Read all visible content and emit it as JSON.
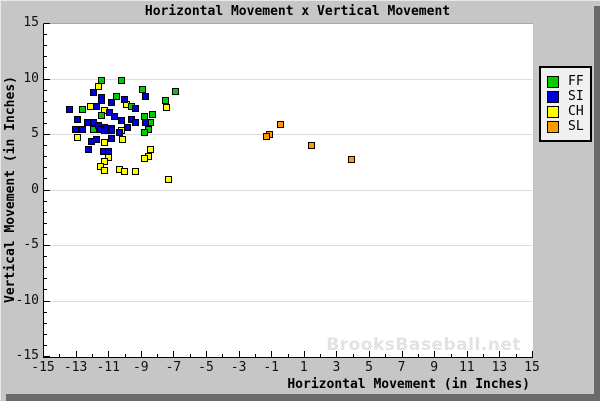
{
  "title": "Horizontal Movement x Vertical Movement",
  "watermark": "BrooksBaseball.net",
  "colors": {
    "panel_background": "#c6c6c6",
    "plot_background": "#ffffff",
    "gridline": "#dcdcdc",
    "panel_shadow": "#6a6a6a",
    "watermark_text": "#e2e2e2",
    "ff": "#00cc00",
    "si": "#0000dd",
    "ch": "#ffff00",
    "sl": "#ff9900"
  },
  "legend": {
    "position": "right",
    "items": [
      {
        "label": "FF",
        "color": "#00cc00"
      },
      {
        "label": "SI",
        "color": "#0000dd"
      },
      {
        "label": "CH",
        "color": "#ffff00"
      },
      {
        "label": "SL",
        "color": "#ff9900"
      }
    ]
  },
  "chart_data": {
    "type": "scatter",
    "title": "Horizontal Movement x Vertical Movement",
    "xlabel": "Horizontal Movement (in Inches)",
    "ylabel": "Vertical Movement (in Inches)",
    "xlim": [
      -15,
      15
    ],
    "ylim": [
      -15,
      15
    ],
    "x_tick_labels": [
      -15,
      -13,
      -11,
      -9,
      -7,
      -5,
      -3,
      -1,
      1,
      3,
      5,
      7,
      9,
      11,
      13,
      15
    ],
    "y_tick_labels": [
      15,
      10,
      5,
      0,
      -5,
      -10,
      -15
    ],
    "x_minor_tick_step": 1,
    "y_minor_tick_step": 1,
    "grid": "horizontal",
    "gridline_values": [
      10,
      5,
      0,
      -5,
      -10
    ],
    "legend_position": "right",
    "marker": "square",
    "series": [
      {
        "name": "FF",
        "color": "#00cc00",
        "points": [
          [
            -11.4,
            9.8
          ],
          [
            -10.2,
            9.8
          ],
          [
            -8.9,
            9.0
          ],
          [
            -6.9,
            8.8
          ],
          [
            -10.5,
            8.4
          ],
          [
            -7.5,
            8.0
          ],
          [
            -9.6,
            7.5
          ],
          [
            -12.6,
            7.2
          ],
          [
            -11.4,
            6.7
          ],
          [
            -8.3,
            6.8
          ],
          [
            -8.8,
            6.6
          ],
          [
            -8.4,
            6.0
          ],
          [
            -11.9,
            5.4
          ],
          [
            -8.5,
            5.4
          ],
          [
            -8.8,
            5.1
          ]
        ]
      },
      {
        "name": "SI",
        "color": "#0000dd",
        "points": [
          [
            -11.9,
            8.7
          ],
          [
            -11.4,
            8.3
          ],
          [
            -8.7,
            8.4
          ],
          [
            -10.0,
            8.1
          ],
          [
            -11.4,
            8.0
          ],
          [
            -13.4,
            7.2
          ],
          [
            -11.7,
            7.5
          ],
          [
            -10.8,
            7.8
          ],
          [
            -9.3,
            7.3
          ],
          [
            -10.9,
            6.9
          ],
          [
            -12.9,
            6.3
          ],
          [
            -10.6,
            6.6
          ],
          [
            -9.6,
            6.3
          ],
          [
            -10.2,
            6.2
          ],
          [
            -12.3,
            6.0
          ],
          [
            -11.9,
            6.0
          ],
          [
            -11.6,
            5.8
          ],
          [
            -11.2,
            5.6
          ],
          [
            -10.8,
            5.5
          ],
          [
            -9.8,
            5.6
          ],
          [
            -9.3,
            6.0
          ],
          [
            -8.7,
            6.0
          ],
          [
            -13.0,
            5.4
          ],
          [
            -12.6,
            5.4
          ],
          [
            -11.5,
            5.4
          ],
          [
            -11.2,
            5.3
          ],
          [
            -10.8,
            5.3
          ],
          [
            -10.3,
            5.1
          ],
          [
            -12.0,
            4.3
          ],
          [
            -11.7,
            4.5
          ],
          [
            -10.8,
            4.6
          ],
          [
            -12.2,
            3.6
          ],
          [
            -11.3,
            3.4
          ],
          [
            -11.0,
            3.4
          ]
        ]
      },
      {
        "name": "CH",
        "color": "#ffff00",
        "points": [
          [
            -11.6,
            9.3
          ],
          [
            -9.9,
            7.7
          ],
          [
            -12.1,
            7.5
          ],
          [
            -11.2,
            7.1
          ],
          [
            -7.4,
            7.4
          ],
          [
            -10.2,
            5.3
          ],
          [
            -12.9,
            4.7
          ],
          [
            -11.2,
            4.2
          ],
          [
            -10.1,
            4.5
          ],
          [
            -11.0,
            2.9
          ],
          [
            -11.2,
            2.5
          ],
          [
            -11.5,
            2.1
          ],
          [
            -11.2,
            1.7
          ],
          [
            -10.3,
            1.8
          ],
          [
            -10.0,
            1.6
          ],
          [
            -9.3,
            1.6
          ],
          [
            -8.4,
            3.6
          ],
          [
            -8.5,
            3.0
          ],
          [
            -8.8,
            2.8
          ],
          [
            -7.3,
            0.9
          ]
        ]
      },
      {
        "name": "SL",
        "color": "#ff9900",
        "points": [
          [
            -0.4,
            5.9
          ],
          [
            -1.1,
            5.0
          ],
          [
            -1.3,
            4.8
          ],
          [
            1.5,
            4.0
          ],
          [
            3.9,
            2.7
          ]
        ]
      }
    ]
  }
}
